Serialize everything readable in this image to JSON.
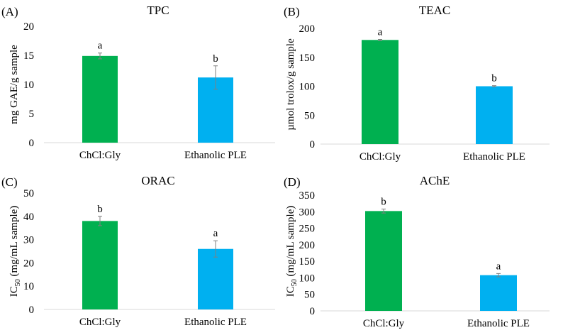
{
  "chart_data": [
    {
      "panel": "(A)",
      "title": "TPC",
      "type": "bar",
      "ylabel": "mg GAE/g sample",
      "ylim": [
        0,
        20
      ],
      "yticks": [
        "0",
        "5",
        "10",
        "15",
        "20"
      ],
      "categories": [
        "ChCl:Gly",
        "Ethanolic PLE"
      ],
      "values": [
        14.9,
        11.2
      ],
      "errors": [
        0.5,
        2.0
      ],
      "letters": [
        "a",
        "b"
      ],
      "colors": [
        "#00b050",
        "#00b0f0"
      ]
    },
    {
      "panel": "(B)",
      "title": "TEAC",
      "type": "bar",
      "ylabel": "µmol trolox/g sample",
      "ylim": [
        0,
        200
      ],
      "yticks": [
        "0",
        "50",
        "100",
        "150",
        "200"
      ],
      "categories": [
        "ChCl:Gly",
        "Ethanolic PLE"
      ],
      "values": [
        180,
        100
      ],
      "errors": [
        1,
        1
      ],
      "letters": [
        "a",
        "b"
      ],
      "colors": [
        "#00b050",
        "#00b0f0"
      ]
    },
    {
      "panel": "(C)",
      "title": "ORAC",
      "type": "bar",
      "ylabel": "IC",
      "ylabel_sub": "50",
      "ylabel_rest": " (mg/mL sample)",
      "ylim": [
        0,
        50
      ],
      "yticks": [
        "0",
        "10",
        "20",
        "30",
        "40",
        "50"
      ],
      "categories": [
        "ChCl:Gly",
        "Ethanolic PLE"
      ],
      "values": [
        38,
        26
      ],
      "errors": [
        2,
        3.5
      ],
      "letters": [
        "b",
        "a"
      ],
      "colors": [
        "#00b050",
        "#00b0f0"
      ]
    },
    {
      "panel": "(D)",
      "title": "AChE",
      "type": "bar",
      "ylabel": "IC",
      "ylabel_sub": "50",
      "ylabel_rest": " (mg/mL sample)",
      "ylim": [
        0,
        350
      ],
      "yticks": [
        "0",
        "50",
        "100",
        "150",
        "200",
        "250",
        "300",
        "350"
      ],
      "categories": [
        "ChCl:Gly",
        "Ethanolic PLE"
      ],
      "values": [
        302,
        108
      ],
      "errors": [
        6,
        5
      ],
      "letters": [
        "b",
        "a"
      ],
      "colors": [
        "#00b050",
        "#00b0f0"
      ]
    }
  ]
}
